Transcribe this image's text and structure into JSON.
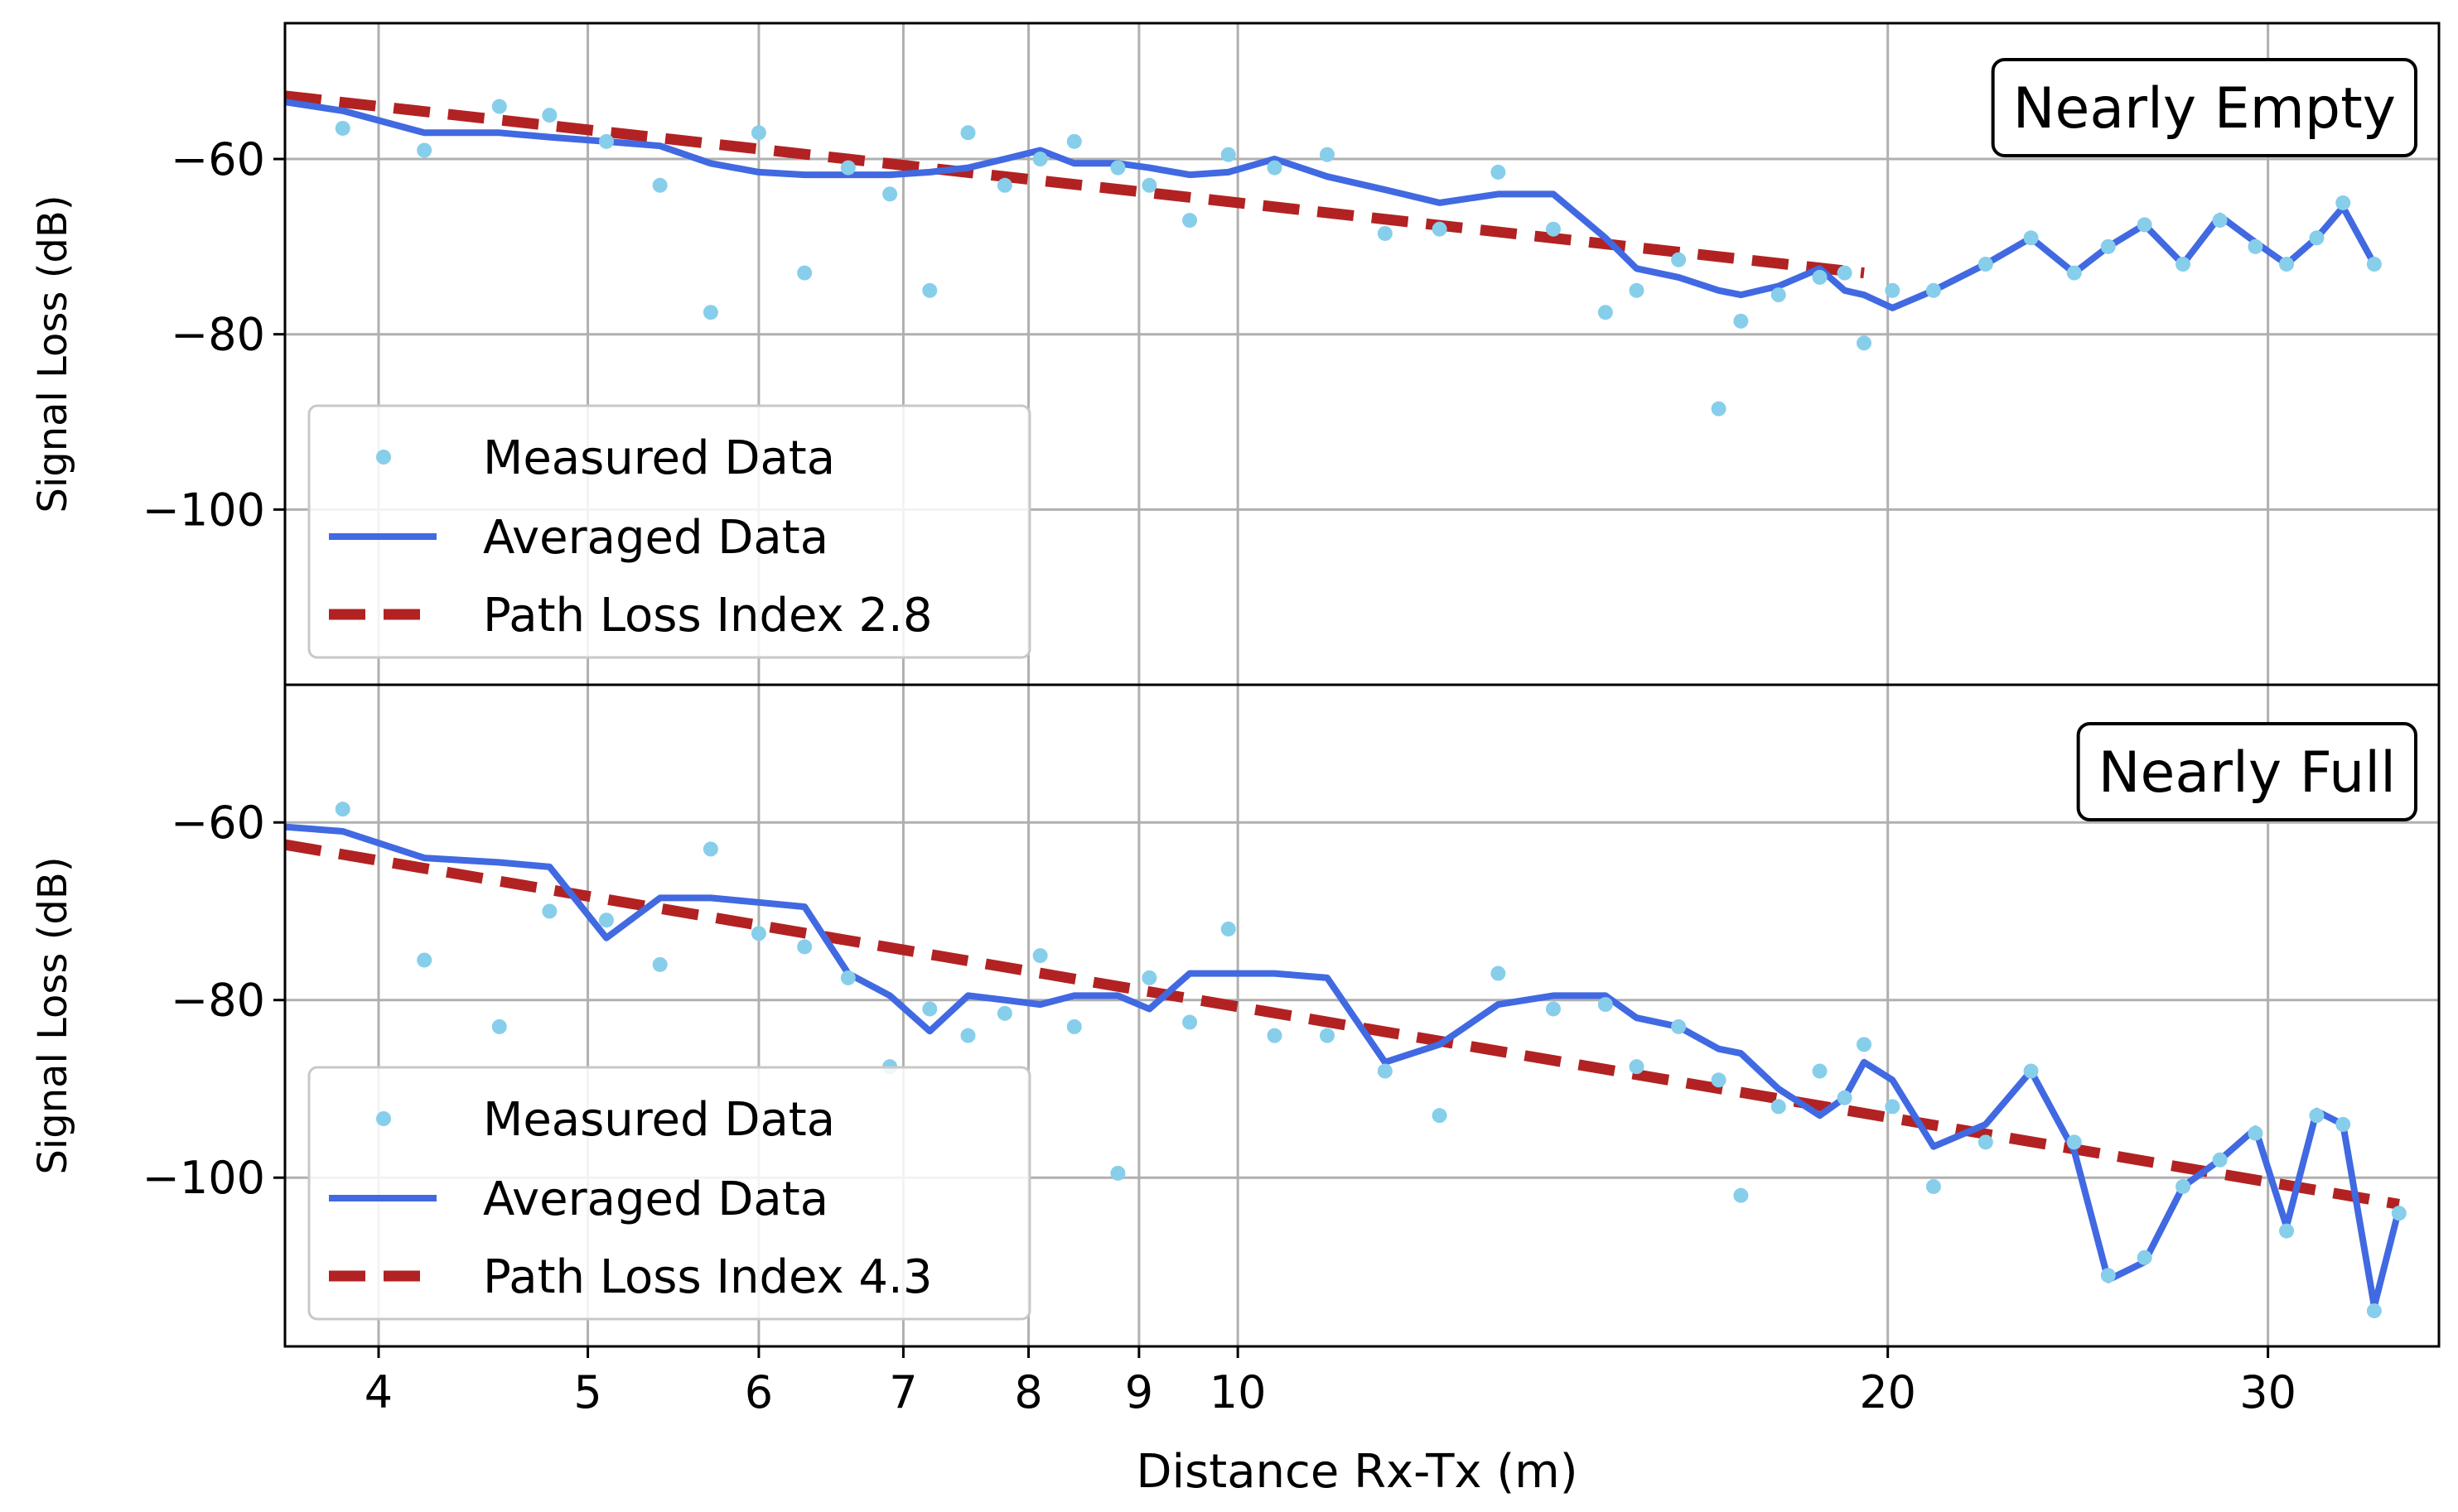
{
  "chart_data": {
    "type": "line",
    "shared_x": {
      "label": "Distance Rx-Tx (m)",
      "scale": "log",
      "xlim": [
        3.62,
        36.0
      ],
      "ticks": [
        4,
        5,
        6,
        7,
        8,
        9,
        10,
        20,
        30
      ],
      "tick_labels": [
        "4",
        "5",
        "6",
        "7",
        "8",
        "9",
        "10",
        "20",
        "30"
      ],
      "minor_grid": [
        40
      ]
    },
    "panels": [
      {
        "id": "top",
        "annotation": "Nearly Empty",
        "ylabel": "Signal Loss (dB)",
        "ylim": [
          -120,
          -44.5
        ],
        "yticks": [
          -60,
          -80,
          -100
        ],
        "ytick_labels": [
          "−60",
          "−80",
          "−100"
        ],
        "legend": [
          "Measured Data",
          "Averaged Data",
          "Path Loss Index 2.8"
        ],
        "measured": [
          [
            3.85,
            -56.5
          ],
          [
            4.2,
            -59
          ],
          [
            4.55,
            -54
          ],
          [
            4.8,
            -55
          ],
          [
            5.1,
            -58
          ],
          [
            5.4,
            -63
          ],
          [
            5.7,
            -77.5
          ],
          [
            6.0,
            -57
          ],
          [
            6.3,
            -73
          ],
          [
            6.6,
            -61
          ],
          [
            6.9,
            -64
          ],
          [
            7.2,
            -75
          ],
          [
            7.5,
            -57
          ],
          [
            7.8,
            -63
          ],
          [
            8.1,
            -60
          ],
          [
            8.4,
            -58
          ],
          [
            8.8,
            -61
          ],
          [
            9.1,
            -63
          ],
          [
            9.5,
            -67
          ],
          [
            9.9,
            -59.5
          ],
          [
            10.4,
            -61
          ],
          [
            11.0,
            -59.5
          ],
          [
            11.7,
            -68.5
          ],
          [
            12.4,
            -68
          ],
          [
            13.2,
            -61.5
          ],
          [
            14.0,
            -68
          ],
          [
            14.8,
            -77.5
          ],
          [
            15.3,
            -75
          ],
          [
            16.0,
            -71.5
          ],
          [
            16.7,
            -88.5
          ],
          [
            17.1,
            -78.5
          ],
          [
            17.8,
            -75.5
          ],
          [
            18.6,
            -73.5
          ],
          [
            19.1,
            -73
          ],
          [
            19.5,
            -81
          ],
          [
            20.1,
            -75
          ],
          [
            21.0,
            -75
          ],
          [
            22.2,
            -72
          ],
          [
            23.3,
            -69
          ],
          [
            24.4,
            -73
          ],
          [
            25.3,
            -70
          ],
          [
            26.3,
            -67.5
          ],
          [
            27.4,
            -72
          ],
          [
            28.5,
            -67
          ],
          [
            29.6,
            -70
          ],
          [
            30.6,
            -72
          ],
          [
            31.6,
            -69
          ],
          [
            32.5,
            -65
          ],
          [
            33.6,
            -72
          ]
        ],
        "averaged": [
          [
            3.62,
            -53.5
          ],
          [
            3.85,
            -54.5
          ],
          [
            4.2,
            -57
          ],
          [
            4.55,
            -57
          ],
          [
            4.8,
            -57.5
          ],
          [
            5.1,
            -58
          ],
          [
            5.4,
            -58.5
          ],
          [
            5.7,
            -60.5
          ],
          [
            6.0,
            -61.5
          ],
          [
            6.3,
            -61.8
          ],
          [
            6.6,
            -61.8
          ],
          [
            6.9,
            -61.8
          ],
          [
            7.2,
            -61.5
          ],
          [
            7.5,
            -61
          ],
          [
            7.8,
            -60
          ],
          [
            8.1,
            -59
          ],
          [
            8.4,
            -60.5
          ],
          [
            8.8,
            -60.5
          ],
          [
            9.1,
            -61
          ],
          [
            9.5,
            -61.8
          ],
          [
            9.9,
            -61.5
          ],
          [
            10.4,
            -60
          ],
          [
            11.0,
            -62
          ],
          [
            11.7,
            -63.5
          ],
          [
            12.4,
            -65
          ],
          [
            13.2,
            -64
          ],
          [
            14.0,
            -64
          ],
          [
            14.8,
            -69
          ],
          [
            15.3,
            -72.5
          ],
          [
            16.0,
            -73.5
          ],
          [
            16.7,
            -75
          ],
          [
            17.1,
            -75.5
          ],
          [
            17.8,
            -74.5
          ],
          [
            18.6,
            -72.5
          ],
          [
            19.1,
            -75
          ],
          [
            19.5,
            -75.5
          ],
          [
            20.1,
            -77
          ],
          [
            21.0,
            -75
          ],
          [
            22.2,
            -72
          ],
          [
            23.3,
            -69
          ],
          [
            24.4,
            -73
          ],
          [
            25.3,
            -70
          ],
          [
            26.3,
            -67.5
          ],
          [
            27.4,
            -72
          ],
          [
            28.5,
            -66.5
          ],
          [
            29.6,
            -69.5
          ],
          [
            30.6,
            -72
          ],
          [
            31.6,
            -69
          ],
          [
            32.5,
            -65.5
          ],
          [
            33.6,
            -72
          ]
        ],
        "path_loss_fit": [
          [
            3.62,
            -52.8
          ],
          [
            19.5,
            -73
          ]
        ]
      },
      {
        "id": "bottom",
        "annotation": "Nearly Full",
        "ylabel": "Signal Loss (dB)",
        "ylim": [
          -119,
          -44.5
        ],
        "yticks": [
          -60,
          -80,
          -100
        ],
        "ytick_labels": [
          "−60",
          "−80",
          "−100"
        ],
        "legend": [
          "Measured Data",
          "Averaged Data",
          "Path Loss Index 4.3"
        ],
        "measured": [
          [
            3.85,
            -58.5
          ],
          [
            4.2,
            -75.5
          ],
          [
            4.55,
            -83
          ],
          [
            4.8,
            -70
          ],
          [
            5.1,
            -71
          ],
          [
            5.4,
            -76
          ],
          [
            5.7,
            -63
          ],
          [
            6.0,
            -72.5
          ],
          [
            6.3,
            -74
          ],
          [
            6.6,
            -77.5
          ],
          [
            6.9,
            -87.5
          ],
          [
            7.2,
            -81
          ],
          [
            7.5,
            -84
          ],
          [
            7.8,
            -81.5
          ],
          [
            8.1,
            -75
          ],
          [
            8.4,
            -83
          ],
          [
            8.8,
            -99.5
          ],
          [
            9.1,
            -77.5
          ],
          [
            9.5,
            -82.5
          ],
          [
            9.9,
            -72
          ],
          [
            10.4,
            -84
          ],
          [
            11.0,
            -84
          ],
          [
            11.7,
            -88
          ],
          [
            12.4,
            -93
          ],
          [
            13.2,
            -77
          ],
          [
            14.0,
            -81
          ],
          [
            14.8,
            -80.5
          ],
          [
            15.3,
            -87.5
          ],
          [
            16.0,
            -83
          ],
          [
            16.7,
            -89
          ],
          [
            17.1,
            -102
          ],
          [
            17.8,
            -92
          ],
          [
            18.6,
            -88
          ],
          [
            19.1,
            -91
          ],
          [
            19.5,
            -85
          ],
          [
            20.1,
            -92
          ],
          [
            21.0,
            -101
          ],
          [
            22.2,
            -96
          ],
          [
            23.3,
            -88
          ],
          [
            24.4,
            -96
          ],
          [
            25.3,
            -111
          ],
          [
            26.3,
            -109
          ],
          [
            27.4,
            -101
          ],
          [
            28.5,
            -98
          ],
          [
            29.6,
            -95
          ],
          [
            30.6,
            -106
          ],
          [
            31.6,
            -93
          ],
          [
            32.5,
            -94
          ],
          [
            33.6,
            -115
          ],
          [
            34.5,
            -104
          ]
        ],
        "averaged": [
          [
            3.62,
            -60.5
          ],
          [
            3.85,
            -61
          ],
          [
            4.2,
            -64
          ],
          [
            4.55,
            -64.5
          ],
          [
            4.8,
            -65
          ],
          [
            5.1,
            -73
          ],
          [
            5.4,
            -68.5
          ],
          [
            5.7,
            -68.5
          ],
          [
            6.0,
            -69
          ],
          [
            6.3,
            -69.5
          ],
          [
            6.6,
            -77
          ],
          [
            6.9,
            -79.5
          ],
          [
            7.2,
            -83.5
          ],
          [
            7.5,
            -79.5
          ],
          [
            7.8,
            -80
          ],
          [
            8.1,
            -80.5
          ],
          [
            8.4,
            -79.5
          ],
          [
            8.8,
            -79.5
          ],
          [
            9.1,
            -81
          ],
          [
            9.5,
            -77
          ],
          [
            9.9,
            -77
          ],
          [
            10.4,
            -77
          ],
          [
            11.0,
            -77.5
          ],
          [
            11.7,
            -87
          ],
          [
            12.4,
            -85
          ],
          [
            13.2,
            -80.5
          ],
          [
            14.0,
            -79.5
          ],
          [
            14.8,
            -79.5
          ],
          [
            15.3,
            -82
          ],
          [
            16.0,
            -83
          ],
          [
            16.7,
            -85.5
          ],
          [
            17.1,
            -86
          ],
          [
            17.8,
            -90
          ],
          [
            18.6,
            -93
          ],
          [
            19.1,
            -91
          ],
          [
            19.5,
            -87
          ],
          [
            20.1,
            -89
          ],
          [
            21.0,
            -96.5
          ],
          [
            22.2,
            -94
          ],
          [
            23.3,
            -88
          ],
          [
            24.4,
            -97
          ],
          [
            25.3,
            -111.5
          ],
          [
            26.3,
            -109.5
          ],
          [
            27.4,
            -101
          ],
          [
            28.5,
            -98
          ],
          [
            29.6,
            -94.5
          ],
          [
            30.6,
            -105.5
          ],
          [
            31.6,
            -92.5
          ],
          [
            32.5,
            -94
          ],
          [
            33.6,
            -114.5
          ],
          [
            34.5,
            -103.5
          ]
        ],
        "path_loss_fit": [
          [
            3.62,
            -62.5
          ],
          [
            34.5,
            -103
          ]
        ]
      }
    ],
    "colors": {
      "measured": "#87ceeb",
      "averaged": "#4169e1",
      "fit": "#b22222",
      "grid": "#b0b0b0"
    }
  }
}
